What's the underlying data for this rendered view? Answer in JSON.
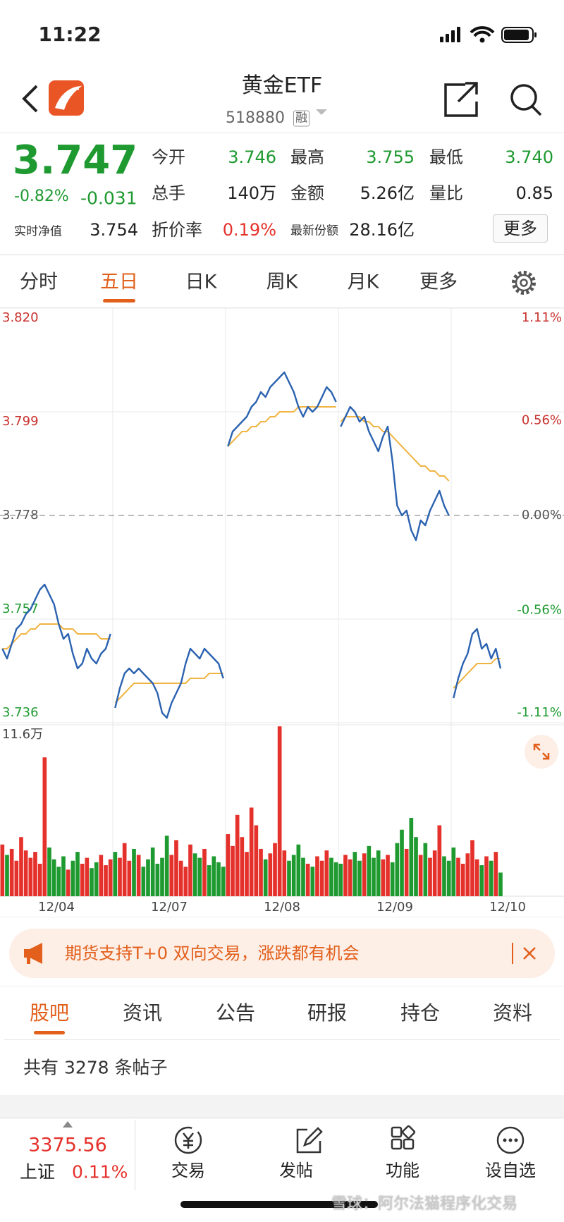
{
  "status_bar": {
    "time": "11:22"
  },
  "header": {
    "title": "黄金ETF",
    "code": "518880",
    "badge": "融"
  },
  "quote": {
    "price": "3.747",
    "change_pct": "-0.82%",
    "change": "-0.031",
    "nav_label": "实时净值",
    "nav": "3.754",
    "stats": [
      {
        "label": "今开",
        "value": "3.746"
      },
      {
        "label": "最高",
        "value": "3.755"
      },
      {
        "label": "最低",
        "value": "3.740"
      },
      {
        "label": "总手",
        "value": "140万"
      },
      {
        "label": "金额",
        "value": "5.26亿"
      },
      {
        "label": "量比",
        "value": "0.85"
      },
      {
        "label": "折价率",
        "value": "0.19%"
      },
      {
        "label": "最新份额",
        "value": "28.16亿"
      }
    ],
    "more_button": "更多"
  },
  "tabs": {
    "items": [
      "分时",
      "五日",
      "日K",
      "周K",
      "月K",
      "更多"
    ],
    "active": 1
  },
  "chart_data": {
    "type": "line",
    "price_color": "#2b62b0",
    "average_color": "#efb443",
    "up_color": "#e5312b",
    "down_color": "#1e9a30",
    "ylim": [
      3.736,
      3.82
    ],
    "yticks": [
      3.736,
      3.757,
      3.778,
      3.799,
      {
        "value": 3.82,
        "label": "3.820"
      }
    ],
    "y2lim": [
      -1.11,
      1.11
    ],
    "y2ticks": [
      {
        "value": -1.11,
        "label": "-1.11%"
      },
      {
        "value": -0.56,
        "label": "-0.56%"
      },
      {
        "value": 0,
        "label": "0.00%"
      },
      {
        "value": 0.56,
        "label": "0.56%"
      },
      {
        "value": 1.11,
        "label": "1.11%"
      }
    ],
    "volume_ylim": [
      0,
      11.6
    ],
    "volume_ticks": [
      {
        "value": 11.6,
        "label": "11.6万"
      }
    ],
    "days": [
      {
        "date": "12/04",
        "price": [
          3.751,
          3.749,
          3.752,
          3.755,
          3.756,
          3.758,
          3.759,
          3.761,
          3.763,
          3.764,
          3.762,
          3.76,
          3.756,
          3.753,
          3.754,
          3.75,
          3.747,
          3.748,
          3.751,
          3.749,
          3.748,
          3.75,
          3.751,
          3.754
        ],
        "average": [
          3.751,
          3.751,
          3.752,
          3.753,
          3.754,
          3.754,
          3.755,
          3.755,
          3.756,
          3.756,
          3.756,
          3.756,
          3.756,
          3.755,
          3.755,
          3.755,
          3.754,
          3.754,
          3.754,
          3.754,
          3.754,
          3.753,
          3.753,
          3.753
        ],
        "volume": [
          3.5,
          2.8,
          3.2,
          2.4,
          4.0,
          3.1,
          2.6,
          3.0,
          2.2,
          9.4,
          3.3,
          2.5,
          2.0,
          2.7,
          1.8,
          2.4,
          3.0,
          2.2,
          2.6,
          1.9,
          2.3,
          2.8,
          2.1,
          2.5
        ]
      },
      {
        "date": "12/07",
        "price": [
          3.739,
          3.743,
          3.746,
          3.747,
          3.746,
          3.747,
          3.746,
          3.745,
          3.744,
          3.742,
          3.738,
          3.737,
          3.74,
          3.742,
          3.744,
          3.748,
          3.751,
          3.75,
          3.749,
          3.751,
          3.75,
          3.749,
          3.748,
          3.745
        ],
        "average": [
          3.74,
          3.741,
          3.742,
          3.743,
          3.744,
          3.744,
          3.744,
          3.744,
          3.744,
          3.744,
          3.744,
          3.744,
          3.744,
          3.744,
          3.744,
          3.744,
          3.745,
          3.745,
          3.745,
          3.745,
          3.746,
          3.746,
          3.746,
          3.746
        ],
        "volume": [
          3.0,
          2.6,
          3.6,
          2.4,
          3.2,
          2.8,
          2.0,
          2.5,
          3.3,
          2.2,
          2.6,
          4.1,
          2.8,
          3.8,
          2.4,
          2.0,
          3.5,
          2.9,
          2.6,
          3.2,
          2.1,
          2.7,
          2.3,
          2.0
        ]
      },
      {
        "date": "12/08",
        "price": [
          3.792,
          3.795,
          3.796,
          3.797,
          3.798,
          3.8,
          3.801,
          3.803,
          3.802,
          3.804,
          3.805,
          3.806,
          3.807,
          3.805,
          3.803,
          3.8,
          3.798,
          3.8,
          3.799,
          3.8,
          3.802,
          3.804,
          3.803,
          3.801
        ],
        "average": [
          3.792,
          3.793,
          3.794,
          3.795,
          3.795,
          3.796,
          3.796,
          3.797,
          3.797,
          3.798,
          3.798,
          3.799,
          3.799,
          3.799,
          3.799,
          3.8,
          3.8,
          3.8,
          3.8,
          3.8,
          3.8,
          3.8,
          3.8,
          3.8
        ],
        "volume": [
          4.2,
          3.4,
          5.5,
          4.0,
          3.0,
          6.0,
          4.8,
          3.2,
          2.5,
          2.9,
          3.6,
          11.5,
          3.1,
          2.4,
          2.8,
          3.5,
          2.6,
          2.2,
          2.0,
          2.7,
          2.4,
          3.1,
          2.6,
          2.3
        ]
      },
      {
        "date": "12/09",
        "price": [
          3.796,
          3.798,
          3.8,
          3.799,
          3.797,
          3.798,
          3.795,
          3.793,
          3.791,
          3.794,
          3.796,
          3.789,
          3.78,
          3.778,
          3.779,
          3.775,
          3.773,
          3.777,
          3.776,
          3.779,
          3.781,
          3.783,
          3.78,
          3.778
        ],
        "average": [
          3.797,
          3.798,
          3.798,
          3.798,
          3.798,
          3.797,
          3.797,
          3.796,
          3.796,
          3.795,
          3.795,
          3.794,
          3.793,
          3.792,
          3.791,
          3.79,
          3.789,
          3.788,
          3.788,
          3.787,
          3.787,
          3.786,
          3.786,
          3.785
        ],
        "volume": [
          2.2,
          2.8,
          2.5,
          3.0,
          2.4,
          2.9,
          3.4,
          2.6,
          3.1,
          2.5,
          2.8,
          2.3,
          3.6,
          4.5,
          3.2,
          5.3,
          4.0,
          2.8,
          3.6,
          2.6,
          3.1,
          4.8,
          2.7,
          2.4
        ]
      },
      {
        "date": "12/10",
        "price": [
          3.741,
          3.745,
          3.748,
          3.75,
          3.754,
          3.755,
          3.751,
          3.752,
          3.749,
          3.751,
          3.747
        ],
        "average": [
          3.743,
          3.744,
          3.745,
          3.746,
          3.747,
          3.748,
          3.748,
          3.748,
          3.748,
          3.749,
          3.749
        ],
        "volume": [
          3.3,
          2.6,
          2.2,
          2.9,
          3.8,
          2.5,
          2.1,
          2.7,
          2.4,
          3.0,
          1.6
        ]
      }
    ]
  },
  "banner": {
    "text": "期货支持T+0 双向交易，涨跌都有机会"
  },
  "section_tabs": {
    "items": [
      "股吧",
      "资讯",
      "公告",
      "研报",
      "持仓",
      "资料"
    ],
    "active": 0
  },
  "post_count": "共有 3278 条帖子",
  "bottom_bar": {
    "index_value": "3375.56",
    "index_name": "上证",
    "index_change": "0.11%",
    "nav": [
      "交易",
      "发帖",
      "功能",
      "设自选"
    ]
  },
  "watermark": "雪球：阿尔法猫程序化交易"
}
